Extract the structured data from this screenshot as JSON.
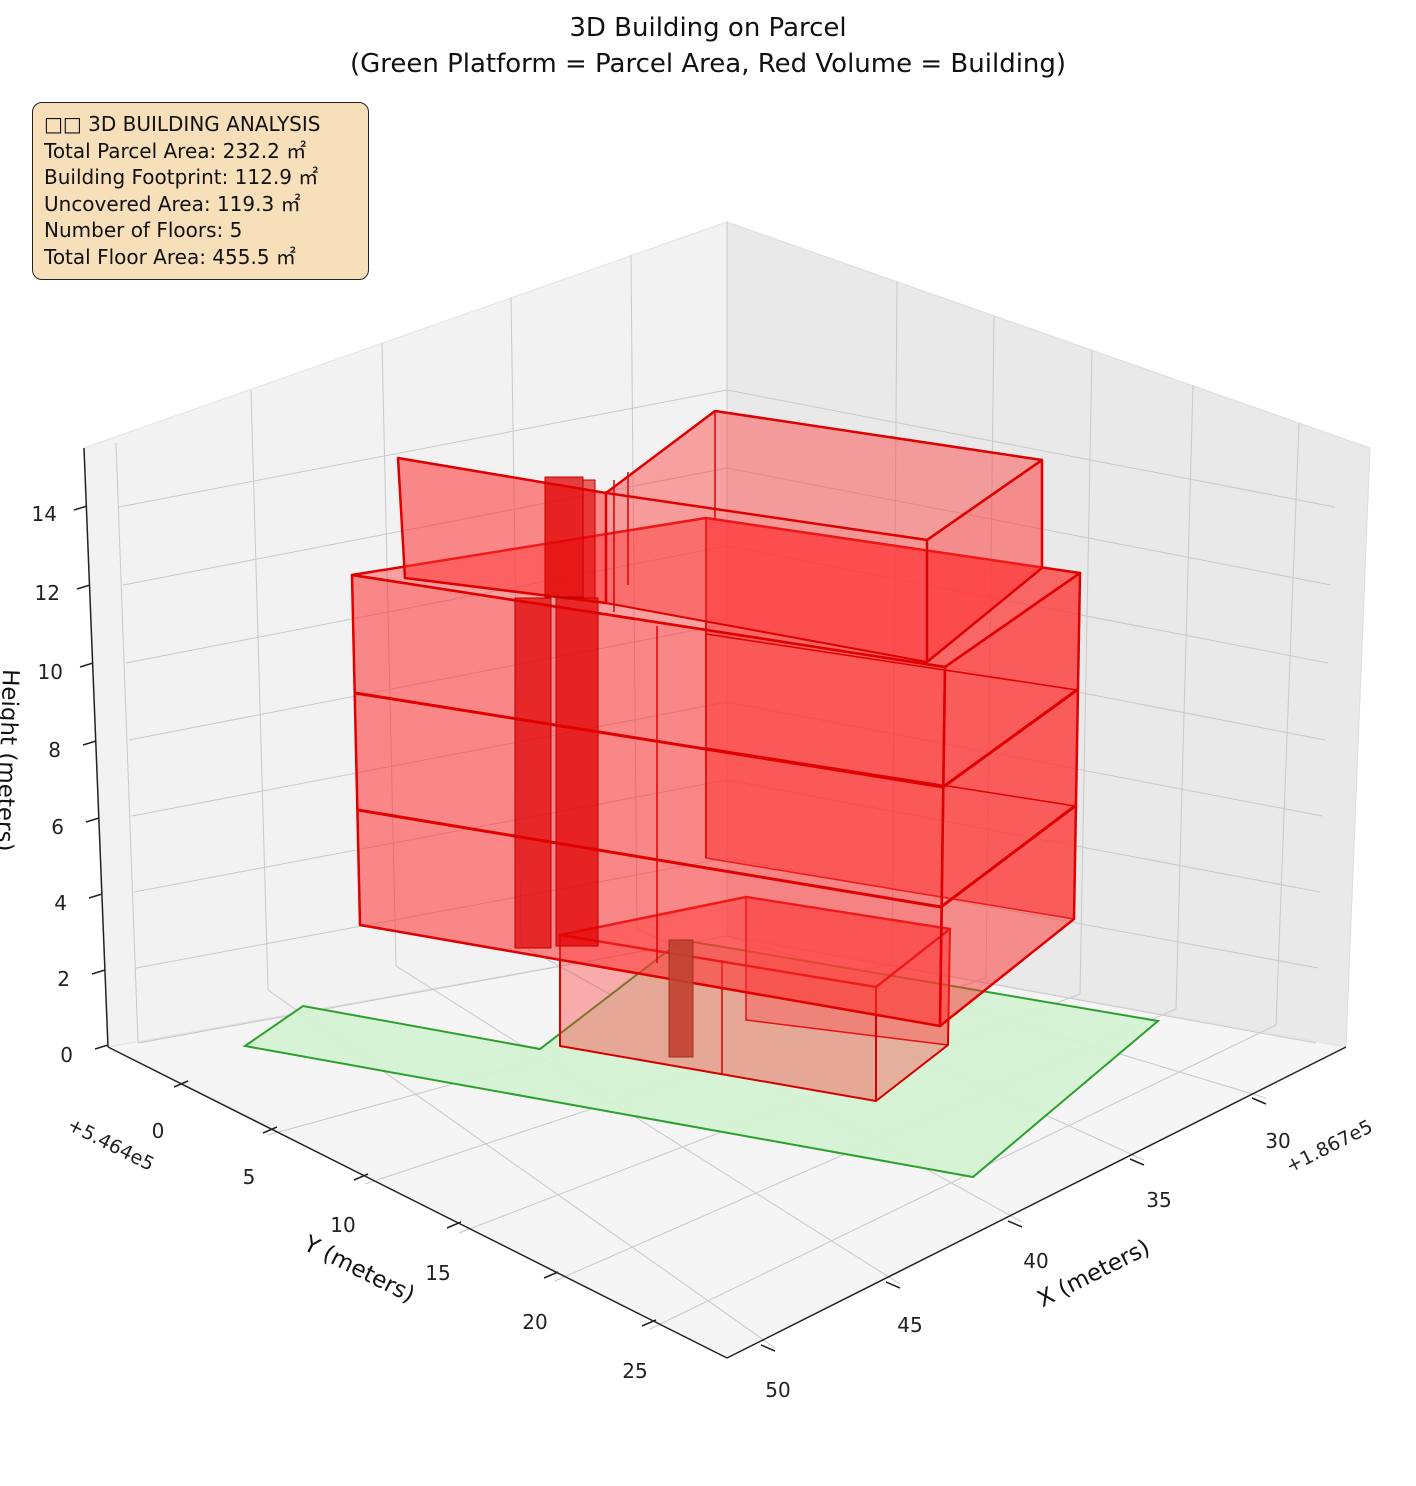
{
  "chart_data": {
    "type": "3d-polygons",
    "title_line1": "3D Building on Parcel",
    "title_line2": "(Green Platform = Parcel Area, Red Volume = Building)",
    "xlabel": "X (meters)",
    "ylabel": "Y (meters)",
    "zlabel": "Height (meters)",
    "x_offset": "+1.867e5",
    "y_offset": "+5.464e5",
    "x_ticks": [
      "30",
      "35",
      "40",
      "45",
      "50"
    ],
    "y_ticks": [
      "0",
      "5",
      "10",
      "15",
      "20",
      "25"
    ],
    "z_ticks": [
      "0",
      "2",
      "4",
      "6",
      "8",
      "10",
      "12",
      "14"
    ],
    "colors": {
      "parcel_fill": "#d4f2d4",
      "parcel_edge": "#2ca02c",
      "building_fill": "#ff3b3b",
      "building_edge": "#e00000"
    },
    "info": {
      "heading": "□□ 3D BUILDING ANALYSIS",
      "lines": [
        "Total Parcel Area: 232.2 ㎡",
        "Building Footprint: 112.9 ㎡",
        "Uncovered Area: 119.3 ㎡",
        "Number of Floors: 5",
        "Total Floor Area: 455.5 ㎡"
      ]
    },
    "metrics": {
      "total_parcel_area_m2": 232.2,
      "building_footprint_m2": 112.9,
      "uncovered_area_m2": 119.3,
      "number_of_floors": 5,
      "total_floor_area_m2": 455.5
    }
  }
}
